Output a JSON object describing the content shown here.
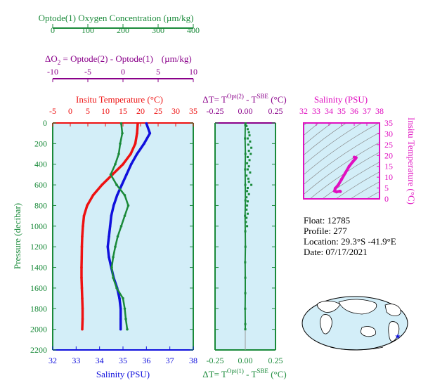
{
  "colors": {
    "oxygen": "#1a8a3a",
    "delta_o2": "#8a008a",
    "temperature": "#ee1111",
    "salinity": "#1010dd",
    "pressure": "#1a8a3a",
    "ts_magenta": "#e010c0",
    "panel_bg": "#d3eef8"
  },
  "info": {
    "float": "Float:  12785",
    "profile": "Profile:  277",
    "location": "Location:  29.3°S  -41.9°E",
    "date": "Date:  07/17/2021"
  },
  "chart_data": [
    {
      "type": "line",
      "name": "profile",
      "ylabel": "Pressure (decibar)",
      "ylim": [
        2200,
        0
      ],
      "yticks": [
        "0",
        "200",
        "400",
        "600",
        "800",
        "1000",
        "1200",
        "1400",
        "1600",
        "1800",
        "2000",
        "2200"
      ],
      "axes": {
        "oxygen": {
          "title": "Optode(1) Oxygen Concentration (µm/kg)",
          "lim": [
            0,
            400
          ],
          "ticks": [
            "0",
            "100",
            "200",
            "300",
            "400"
          ]
        },
        "delta_o2": {
          "title_lines": [
            "ΔO",
            "2",
            " = Optode(2) - Optode(1)",
            "(µm/kg)"
          ],
          "lim": [
            -10,
            10
          ],
          "ticks": [
            "-10",
            "-5",
            "0",
            "5",
            "10"
          ]
        },
        "temperature": {
          "title": "Insitu Temperature (°C)",
          "lim": [
            -5,
            35
          ],
          "ticks": [
            "-5",
            "0",
            "5",
            "10",
            "15",
            "20",
            "25",
            "30",
            "35"
          ]
        },
        "salinity": {
          "title": "Salinity (PSU)",
          "lim": [
            32,
            38
          ],
          "ticks": [
            "32",
            "33",
            "34",
            "35",
            "36",
            "37",
            "38"
          ]
        }
      },
      "series": [
        {
          "name": "Insitu Temperature",
          "axis": "temperature",
          "pressure": [
            5,
            100,
            200,
            300,
            400,
            500,
            600,
            700,
            800,
            900,
            1000,
            1100,
            1200,
            1300,
            1400,
            1500,
            1600,
            1700,
            1800,
            1900,
            2000
          ],
          "values": [
            19.2,
            19.0,
            18.5,
            17.2,
            15.0,
            12.0,
            9.0,
            6.5,
            4.8,
            3.9,
            3.6,
            3.4,
            3.3,
            3.25,
            3.2,
            3.2,
            3.3,
            3.4,
            3.5,
            3.5,
            3.4
          ]
        },
        {
          "name": "Salinity",
          "axis": "salinity",
          "pressure": [
            5,
            100,
            200,
            300,
            400,
            500,
            600,
            700,
            800,
            900,
            1000,
            1100,
            1200,
            1300,
            1400,
            1500,
            1600,
            1700,
            1800,
            1900,
            2000
          ],
          "values": [
            36.0,
            36.15,
            35.9,
            35.6,
            35.35,
            35.15,
            34.95,
            34.75,
            34.6,
            34.5,
            34.45,
            34.4,
            34.35,
            34.4,
            34.5,
            34.6,
            34.75,
            34.85,
            34.9,
            34.9,
            34.9
          ]
        },
        {
          "name": "Oxygen",
          "axis": "oxygen",
          "pressure": [
            5,
            100,
            200,
            300,
            400,
            500,
            600,
            700,
            800,
            900,
            1000,
            1100,
            1200,
            1300,
            1400,
            1500,
            1600,
            1700,
            1800,
            1900,
            2000
          ],
          "values": [
            195,
            198,
            192,
            188,
            178,
            165,
            182,
            205,
            215,
            205,
            195,
            185,
            178,
            172,
            168,
            172,
            182,
            200,
            205,
            208,
            212
          ]
        }
      ]
    },
    {
      "type": "scatter",
      "name": "delta_t",
      "title_top": [
        "ΔT= T",
        "Opt(2)",
        " - T",
        "SBE",
        " (°C)"
      ],
      "title_bottom": [
        "ΔT= T",
        "Opt(1)",
        " - T",
        "SBE",
        " (°C)"
      ],
      "xlim": [
        -0.25,
        0.25
      ],
      "xticks": [
        "-0.25",
        "0.00",
        "0.25"
      ],
      "ylim": [
        2200,
        0
      ],
      "points_opt2": [
        [
          0.002,
          5
        ],
        [
          0.01,
          30
        ],
        [
          0.02,
          60
        ],
        [
          0.03,
          90
        ],
        [
          0.035,
          120
        ],
        [
          0.02,
          150
        ],
        [
          0.04,
          180
        ],
        [
          0.025,
          210
        ],
        [
          0.05,
          240
        ],
        [
          0.03,
          270
        ],
        [
          0.045,
          300
        ],
        [
          0.02,
          330
        ],
        [
          0.035,
          360
        ],
        [
          0.015,
          390
        ],
        [
          0.03,
          420
        ],
        [
          0.02,
          450
        ],
        [
          0.04,
          480
        ],
        [
          0.01,
          510
        ],
        [
          0.025,
          540
        ],
        [
          0.03,
          570
        ],
        [
          0.05,
          600
        ],
        [
          0.02,
          630
        ],
        [
          0.015,
          660
        ],
        [
          0.03,
          690
        ],
        [
          0.01,
          720
        ],
        [
          0.02,
          760
        ],
        [
          0.015,
          800
        ],
        [
          0.01,
          840
        ],
        [
          0.02,
          880
        ],
        [
          0.01,
          920
        ],
        [
          0.005,
          960
        ],
        [
          0.015,
          1000
        ]
      ],
      "points_opt1": [
        [
          0.0,
          20
        ],
        [
          -0.002,
          150
        ],
        [
          0.001,
          300
        ],
        [
          -0.001,
          450
        ],
        [
          0.0,
          600
        ],
        [
          0.001,
          750
        ],
        [
          -0.002,
          900
        ],
        [
          0.0,
          1050
        ],
        [
          0.001,
          1200
        ],
        [
          -0.001,
          1350
        ],
        [
          0.0,
          1500
        ],
        [
          0.0,
          1650
        ],
        [
          -0.001,
          1800
        ],
        [
          0.0,
          1950
        ],
        [
          0.0,
          2000
        ]
      ]
    },
    {
      "type": "line",
      "name": "ts_diagram",
      "title": "Salinity (PSU)",
      "xlim": [
        32,
        38
      ],
      "xticks": [
        "32",
        "33",
        "34",
        "35",
        "36",
        "37",
        "38"
      ],
      "ylim": [
        0,
        35
      ],
      "yticks": [
        "0",
        "5",
        "10",
        "15",
        "20",
        "25",
        "30",
        "35"
      ],
      "ylabel": "Insitu Temperature (°C)",
      "salinity": [
        34.9,
        34.85,
        34.6,
        34.45,
        34.5,
        34.75,
        35.0,
        35.3,
        35.6,
        35.9,
        36.1,
        36.15,
        36.0
      ],
      "temperature": [
        3.4,
        3.5,
        3.2,
        3.6,
        4.8,
        6.5,
        9.0,
        12.0,
        15.0,
        17.2,
        18.5,
        19.0,
        19.2
      ]
    }
  ]
}
